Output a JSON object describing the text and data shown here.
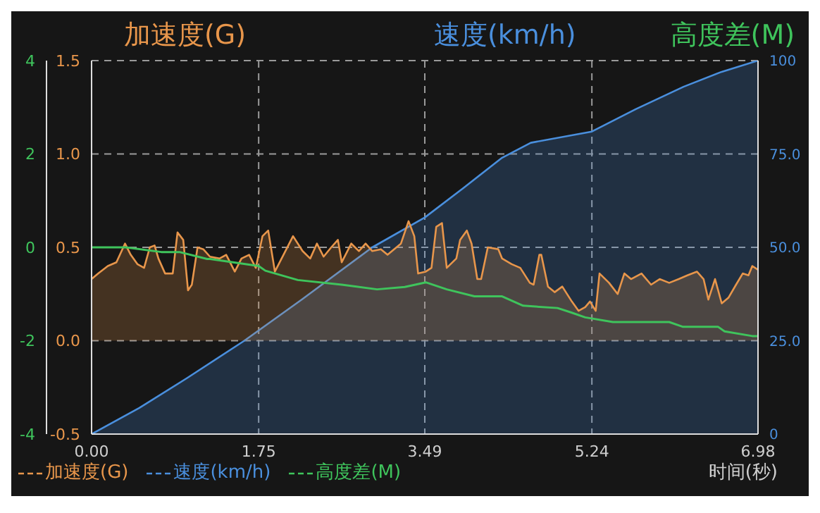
{
  "chart_data": {
    "type": "area",
    "xlabel": "时间(秒)",
    "ylabel": "加速度(G)",
    "y2label": "速度(km/h)",
    "y3label": "高度差(M)",
    "xlim": [
      0,
      6.98
    ],
    "xticks": [
      {
        "value": 0,
        "label": "0.00"
      },
      1.75,
      3.49,
      5.24,
      6.98
    ],
    "ylim": [
      -0.5,
      1.5
    ],
    "yticks": [
      -0.5,
      {
        "value": 0,
        "label": "0.0"
      },
      0.5,
      {
        "value": 1,
        "label": "1.0"
      },
      1.5
    ],
    "y2lim": [
      0,
      100
    ],
    "y2ticks": [
      0,
      {
        "value": 25,
        "label": "25.0"
      },
      {
        "value": 50,
        "label": "50.0"
      },
      {
        "value": 75,
        "label": "75.0"
      },
      100
    ],
    "y3lim": [
      -4,
      4
    ],
    "y3ticks": [
      -4,
      -2,
      0,
      2,
      4
    ],
    "grid": true,
    "legend": "bottom left",
    "series": [
      {
        "name": "加速度(G)",
        "color": "#e8964b",
        "x": [
          0,
          0.07,
          0.17,
          0.26,
          0.35,
          0.41,
          0.48,
          0.55,
          0.61,
          0.66,
          0.7,
          0.77,
          0.85,
          0.9,
          0.96,
          1.01,
          1.05,
          1.11,
          1.17,
          1.24,
          1.34,
          1.41,
          1.5,
          1.57,
          1.65,
          1.72,
          1.79,
          1.85,
          1.92,
          2.01,
          2.11,
          2.21,
          2.29,
          2.36,
          2.43,
          2.51,
          2.58,
          2.62,
          2.72,
          2.8,
          2.87,
          2.94,
          3.03,
          3.1,
          3.24,
          3.32,
          3.38,
          3.42,
          3.5,
          3.56,
          3.61,
          3.67,
          3.72,
          3.82,
          3.86,
          3.93,
          3.98,
          4.04,
          4.08,
          4.15,
          4.26,
          4.3,
          4.4,
          4.49,
          4.59,
          4.63,
          4.69,
          4.71,
          4.78,
          4.85,
          4.93,
          5.03,
          5.1,
          5.17,
          5.22,
          5.28,
          5.32,
          5.42,
          5.51,
          5.58,
          5.65,
          5.76,
          5.86,
          5.95,
          6.05,
          6.15,
          6.24,
          6.34,
          6.41,
          6.46,
          6.53,
          6.6,
          6.67,
          6.75,
          6.82,
          6.88,
          6.92,
          6.98
        ],
        "values": [
          0.33,
          0.36,
          0.4,
          0.42,
          0.52,
          0.46,
          0.41,
          0.39,
          0.5,
          0.51,
          0.44,
          0.36,
          0.36,
          0.58,
          0.54,
          0.27,
          0.3,
          0.5,
          0.49,
          0.45,
          0.44,
          0.46,
          0.37,
          0.44,
          0.46,
          0.39,
          0.56,
          0.59,
          0.37,
          0.46,
          0.56,
          0.48,
          0.44,
          0.52,
          0.45,
          0.5,
          0.54,
          0.42,
          0.52,
          0.48,
          0.52,
          0.48,
          0.49,
          0.46,
          0.52,
          0.64,
          0.56,
          0.36,
          0.37,
          0.39,
          0.61,
          0.63,
          0.39,
          0.44,
          0.54,
          0.59,
          0.52,
          0.33,
          0.33,
          0.5,
          0.49,
          0.44,
          0.41,
          0.39,
          0.31,
          0.3,
          0.46,
          0.46,
          0.29,
          0.26,
          0.29,
          0.21,
          0.16,
          0.18,
          0.21,
          0.16,
          0.36,
          0.31,
          0.25,
          0.36,
          0.33,
          0.36,
          0.3,
          0.33,
          0.31,
          0.33,
          0.35,
          0.37,
          0.33,
          0.22,
          0.33,
          0.2,
          0.23,
          0.3,
          0.36,
          0.35,
          0.4,
          0.38
        ]
      },
      {
        "name": "速度(km/h)",
        "axis": "y2",
        "color": "#4a8fdd",
        "x": [
          0,
          0.5,
          1.0,
          1.6,
          2.2,
          2.94,
          3.49,
          3.9,
          4.3,
          4.6,
          5.24,
          5.7,
          6.2,
          6.6,
          6.98
        ],
        "values": [
          0,
          7,
          15,
          25,
          36,
          50,
          58,
          66,
          74,
          78,
          81,
          87,
          93,
          97,
          100
        ]
      },
      {
        "name": "高度差(M)",
        "type": "line",
        "axis": "y3",
        "color": "#3fc45c",
        "x": [
          0,
          0.36,
          0.73,
          0.92,
          1.21,
          1.24,
          1.75,
          1.82,
          2.16,
          2.62,
          2.99,
          3.28,
          3.5,
          3.72,
          4.01,
          4.3,
          4.52,
          4.88,
          5.03,
          5.17,
          5.46,
          6.05,
          6.19,
          6.56,
          6.63,
          6.92,
          6.98
        ],
        "values": [
          0,
          0,
          -0.1,
          -0.1,
          -0.25,
          -0.25,
          -0.4,
          -0.5,
          -0.7,
          -0.8,
          -0.9,
          -0.85,
          -0.75,
          -0.9,
          -1.05,
          -1.05,
          -1.25,
          -1.3,
          -1.4,
          -1.5,
          -1.6,
          -1.6,
          -1.7,
          -1.7,
          -1.8,
          -1.9,
          -1.9
        ]
      }
    ]
  }
}
